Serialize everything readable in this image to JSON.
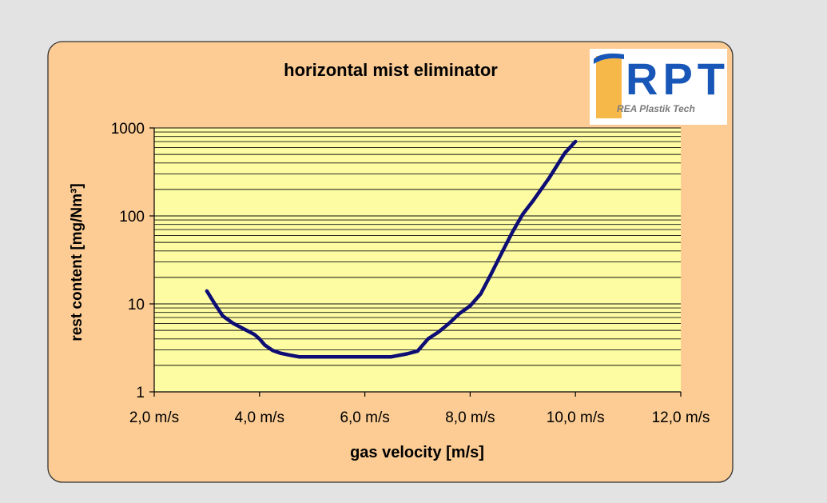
{
  "colors": {
    "page_background": "#e3e3e3",
    "panel_fill": "#fccc94",
    "panel_border": "#333333",
    "plot_fill": "#fdfca2",
    "grid": "#111111",
    "series_line": "#0d0d75",
    "logo_blue": "#1856b8",
    "logo_orange": "#f29a0a"
  },
  "logo": {
    "text": "RPT",
    "subtitle": "REA Plastik Tech"
  },
  "chart_data": {
    "type": "line",
    "title": "horizontal mist eliminator",
    "xlabel": "gas velocity [m/s]",
    "ylabel": "rest content [mg/Nm³]",
    "xlim": [
      2,
      12
    ],
    "ylim": [
      1,
      1000
    ],
    "y_scale": "log",
    "x_ticks": [
      2,
      4,
      6,
      8,
      10,
      12
    ],
    "x_tick_labels": [
      "2,0 m/s",
      "4,0 m/s",
      "6,0 m/s",
      "8,0 m/s",
      "10,0 m/s",
      "12,0 m/s"
    ],
    "y_ticks": [
      1,
      10,
      100,
      1000
    ],
    "y_tick_labels": [
      "1",
      "10",
      "100",
      "1000"
    ],
    "grid": true,
    "legend": "none",
    "series": [
      {
        "x": [
          3.0,
          3.15,
          3.3,
          3.5,
          3.7,
          3.9,
          4.0,
          4.1,
          4.25,
          4.4,
          4.6,
          4.75,
          5.0,
          5.5,
          6.0,
          6.5,
          6.8,
          7.0,
          7.2,
          7.4,
          7.6,
          7.8,
          8.0,
          8.2,
          8.4,
          8.6,
          8.8,
          9.0,
          9.2,
          9.5,
          9.8,
          10.0
        ],
        "y": [
          14,
          10,
          7.3,
          6.0,
          5.2,
          4.5,
          4.0,
          3.4,
          2.95,
          2.75,
          2.6,
          2.5,
          2.5,
          2.5,
          2.5,
          2.5,
          2.7,
          2.9,
          4.0,
          4.8,
          6.0,
          7.8,
          9.5,
          13,
          22,
          38,
          65,
          105,
          150,
          270,
          520,
          700
        ]
      }
    ]
  }
}
